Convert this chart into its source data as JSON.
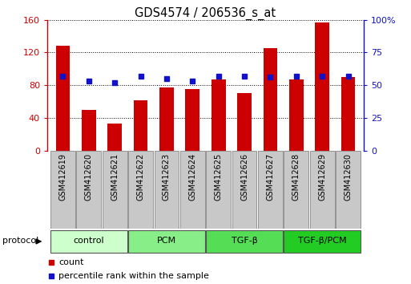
{
  "title": "GDS4574 / 206536_s_at",
  "samples": [
    "GSM412619",
    "GSM412620",
    "GSM412621",
    "GSM412622",
    "GSM412623",
    "GSM412624",
    "GSM412625",
    "GSM412626",
    "GSM412627",
    "GSM412628",
    "GSM412629",
    "GSM412630"
  ],
  "counts": [
    128,
    50,
    33,
    62,
    77,
    75,
    87,
    70,
    125,
    87,
    157,
    90
  ],
  "percentiles": [
    57,
    53,
    52,
    57,
    55,
    53,
    57,
    57,
    56,
    57,
    57,
    57
  ],
  "bar_color": "#cc0000",
  "dot_color": "#1111cc",
  "ylim_left": [
    0,
    160
  ],
  "ylim_right": [
    0,
    100
  ],
  "yticks_left": [
    0,
    40,
    80,
    120,
    160
  ],
  "yticks_right": [
    0,
    25,
    50,
    75,
    100
  ],
  "yticklabels_right": [
    "0",
    "25",
    "50",
    "75",
    "100%"
  ],
  "yticklabels_left": [
    "0",
    "40",
    "80",
    "120",
    "160"
  ],
  "groups": [
    {
      "label": "control",
      "start": 0,
      "end": 2,
      "color": "#ccffcc"
    },
    {
      "label": "PCM",
      "start": 3,
      "end": 5,
      "color": "#88ee88"
    },
    {
      "label": "TGF-β",
      "start": 6,
      "end": 8,
      "color": "#55dd55"
    },
    {
      "label": "TGF-β/PCM",
      "start": 9,
      "end": 11,
      "color": "#22cc22"
    }
  ],
  "protocol_label": "protocol",
  "legend_count_label": "count",
  "legend_percentile_label": "percentile rank within the sample",
  "background_color": "#ffffff",
  "sample_box_color": "#c8c8c8"
}
